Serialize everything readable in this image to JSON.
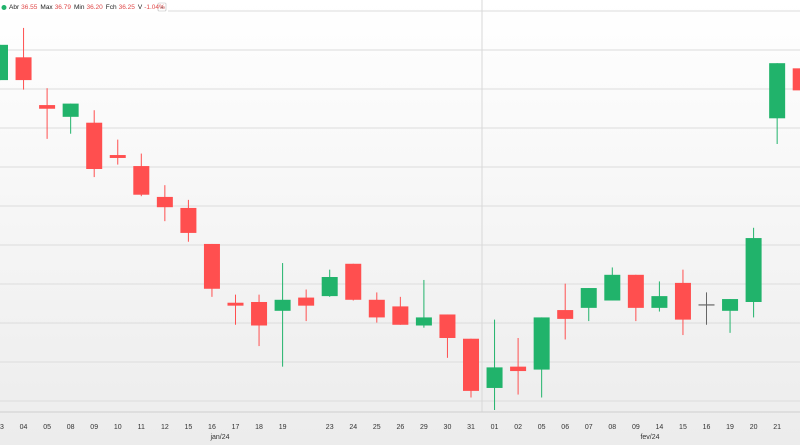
{
  "chart_data": {
    "type": "candlestick",
    "header": [
      {
        "label": "Abr",
        "value": "36.55"
      },
      {
        "label": "Max",
        "value": "36.79"
      },
      {
        "label": "Min",
        "value": "36.20"
      },
      {
        "label": "Fch",
        "value": "36.25"
      },
      {
        "label": "V",
        "value": "-1.04%"
      }
    ],
    "categories": [
      "03",
      "04",
      "05",
      "08",
      "09",
      "10",
      "11",
      "12",
      "15",
      "16",
      "17",
      "18",
      "19",
      null,
      "23",
      "24",
      "25",
      "26",
      "29",
      "30",
      "31",
      "01",
      "02",
      "05",
      "06",
      "07",
      "08",
      "09",
      "14",
      "15",
      "16",
      "19",
      "20",
      "21",
      null
    ],
    "month_labels": [
      "jan/24",
      "fev/24"
    ],
    "open": [
      36.39,
      36.7,
      36.05,
      35.89,
      35.81,
      35.37,
      35.22,
      34.8,
      34.65,
      34.16,
      33.36,
      33.37,
      33.25,
      33.43,
      33.45,
      33.89,
      33.4,
      33.31,
      33.05,
      33.2,
      32.87,
      32.2,
      32.49,
      32.45,
      33.26,
      33.29,
      33.39,
      33.74,
      33.29,
      33.63,
      33.33,
      33.25,
      33.37,
      35.87,
      36.55
    ],
    "high": [
      36.87,
      37.1,
      36.28,
      36.07,
      35.98,
      35.58,
      35.39,
      34.96,
      34.76,
      34.16,
      33.47,
      33.47,
      33.9,
      33.54,
      33.81,
      33.89,
      33.5,
      33.44,
      33.67,
      33.2,
      32.87,
      33.13,
      32.88,
      33.16,
      33.62,
      33.56,
      33.84,
      33.74,
      33.65,
      33.81,
      33.5,
      33.41,
      34.38,
      36.62,
      36.79
    ],
    "low": [
      36.39,
      36.26,
      35.59,
      35.66,
      35.07,
      35.24,
      34.81,
      34.47,
      34.19,
      33.44,
      33.06,
      32.77,
      32.49,
      33.11,
      33.44,
      33.39,
      33.09,
      33.06,
      33.02,
      32.61,
      32.07,
      31.9,
      32.11,
      32.07,
      32.86,
      33.11,
      33.39,
      33.11,
      33.24,
      32.92,
      33.06,
      32.95,
      33.16,
      35.52,
      36.2
    ],
    "close": [
      36.87,
      36.39,
      36.0,
      36.07,
      35.18,
      35.33,
      34.83,
      34.66,
      34.31,
      33.55,
      33.32,
      33.05,
      33.4,
      33.32,
      33.71,
      33.4,
      33.16,
      33.06,
      33.16,
      32.88,
      32.16,
      32.48,
      32.43,
      33.16,
      33.14,
      33.56,
      33.74,
      33.29,
      33.45,
      33.13,
      33.33,
      33.41,
      34.24,
      36.62,
      36.25
    ],
    "up_color": "#21b36b",
    "down_color": "#ff4f4f",
    "flat_color": "#666666",
    "ylim": [
      31.9,
      37.48
    ],
    "grid": true
  }
}
